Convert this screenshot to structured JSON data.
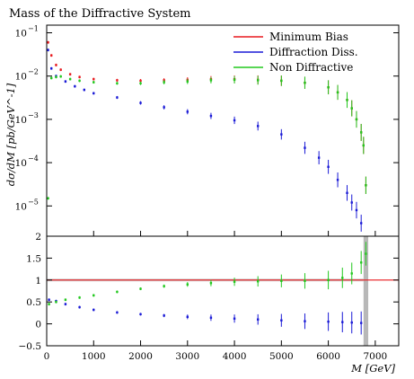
{
  "chart_data": [
    {
      "type": "scatter",
      "title": "Mass of the Diffractive System",
      "xlabel": "M [GeV]",
      "ylabel": "dσ/dM [pb/GeV^-1]",
      "xlim": [
        0,
        7500
      ],
      "ylim": [
        2e-06,
        0.15
      ],
      "yscale": "log",
      "x_ticks": [
        "0",
        "1000",
        "2000",
        "3000",
        "4000",
        "5000",
        "6000",
        "7000"
      ],
      "y_ticks": [
        {
          "value": 0.1,
          "base": "10",
          "exp": "−1"
        },
        {
          "value": 0.01,
          "base": "10",
          "exp": "−2"
        },
        {
          "value": 0.001,
          "base": "10",
          "exp": "−3"
        },
        {
          "value": 0.0001,
          "base": "10",
          "exp": "−4"
        },
        {
          "value": 1e-05,
          "base": "10",
          "exp": "−5"
        }
      ],
      "legend_position": "top-right",
      "series": [
        {
          "name": "Minimum Bias",
          "color": "#e8191e",
          "x": [
            30,
            100,
            200,
            300,
            500,
            700,
            1000,
            1500,
            2000,
            2500,
            3000,
            3500,
            4000,
            4500,
            5000,
            5500,
            6000,
            6200,
            6400,
            6500,
            6600,
            6700,
            6750,
            6800
          ],
          "y": [
            0.06,
            0.03,
            0.018,
            0.014,
            0.011,
            0.0095,
            0.0085,
            0.008,
            0.0078,
            0.008,
            0.0082,
            0.0085,
            0.0085,
            0.0082,
            0.0078,
            0.007,
            0.0055,
            0.0042,
            0.0028,
            0.0018,
            0.001,
            0.0005,
            0.00025,
            3e-05
          ]
        },
        {
          "name": "Diffraction Diss.",
          "color": "#1a1ad6",
          "x": [
            30,
            100,
            200,
            400,
            600,
            800,
            1000,
            1500,
            2000,
            2500,
            3000,
            3500,
            4000,
            4500,
            5000,
            5500,
            5800,
            6000,
            6200,
            6400,
            6500,
            6600,
            6700
          ],
          "y": [
            0.04,
            0.015,
            0.01,
            0.0075,
            0.0058,
            0.0048,
            0.004,
            0.0032,
            0.0024,
            0.0019,
            0.0015,
            0.0012,
            0.00095,
            0.0007,
            0.00045,
            0.00022,
            0.00013,
            8e-05,
            4e-05,
            2e-05,
            1.2e-05,
            8e-06,
            4e-06
          ]
        },
        {
          "name": "Non Diffractive",
          "color": "#22c81e",
          "x": [
            30,
            100,
            200,
            300,
            500,
            700,
            1000,
            1500,
            2000,
            2500,
            3000,
            3500,
            4000,
            4500,
            5000,
            5500,
            6000,
            6200,
            6400,
            6500,
            6600,
            6700,
            6750,
            6800
          ],
          "y": [
            1.5e-05,
            0.009,
            0.0095,
            0.0098,
            0.0085,
            0.0078,
            0.0072,
            0.0068,
            0.0068,
            0.0072,
            0.0075,
            0.008,
            0.0082,
            0.008,
            0.0078,
            0.007,
            0.0055,
            0.0042,
            0.0028,
            0.0018,
            0.001,
            0.0005,
            0.00025,
            3e-05
          ]
        }
      ]
    },
    {
      "type": "scatter",
      "ylabel": "",
      "xlabel": "M [GeV]",
      "xlim": [
        0,
        7500
      ],
      "ylim": [
        -0.5,
        2
      ],
      "y_ticks": [
        "−0.5",
        "0",
        "0.5",
        "1",
        "1.5",
        "2"
      ],
      "reference_line": 1,
      "series": [
        {
          "name": "Diffraction Diss.",
          "color": "#1a1ad6",
          "x": [
            50,
            200,
            400,
            700,
            1000,
            1500,
            2000,
            2500,
            3000,
            3500,
            4000,
            4500,
            5000,
            5500,
            6000,
            6300,
            6500,
            6700
          ],
          "y": [
            0.55,
            0.52,
            0.45,
            0.38,
            0.32,
            0.26,
            0.22,
            0.19,
            0.16,
            0.14,
            0.12,
            0.1,
            0.08,
            0.06,
            0.05,
            0.04,
            0.03,
            0.02
          ]
        },
        {
          "name": "Non Diffractive",
          "color": "#22c81e",
          "x": [
            50,
            200,
            400,
            700,
            1000,
            1500,
            2000,
            2500,
            3000,
            3500,
            4000,
            4500,
            5000,
            5500,
            6000,
            6300,
            6500,
            6700,
            6800
          ],
          "y": [
            0.45,
            0.5,
            0.55,
            0.6,
            0.65,
            0.73,
            0.8,
            0.86,
            0.9,
            0.93,
            0.96,
            0.97,
            0.98,
            0.98,
            1.0,
            1.05,
            1.15,
            1.4,
            1.6
          ]
        }
      ]
    }
  ]
}
